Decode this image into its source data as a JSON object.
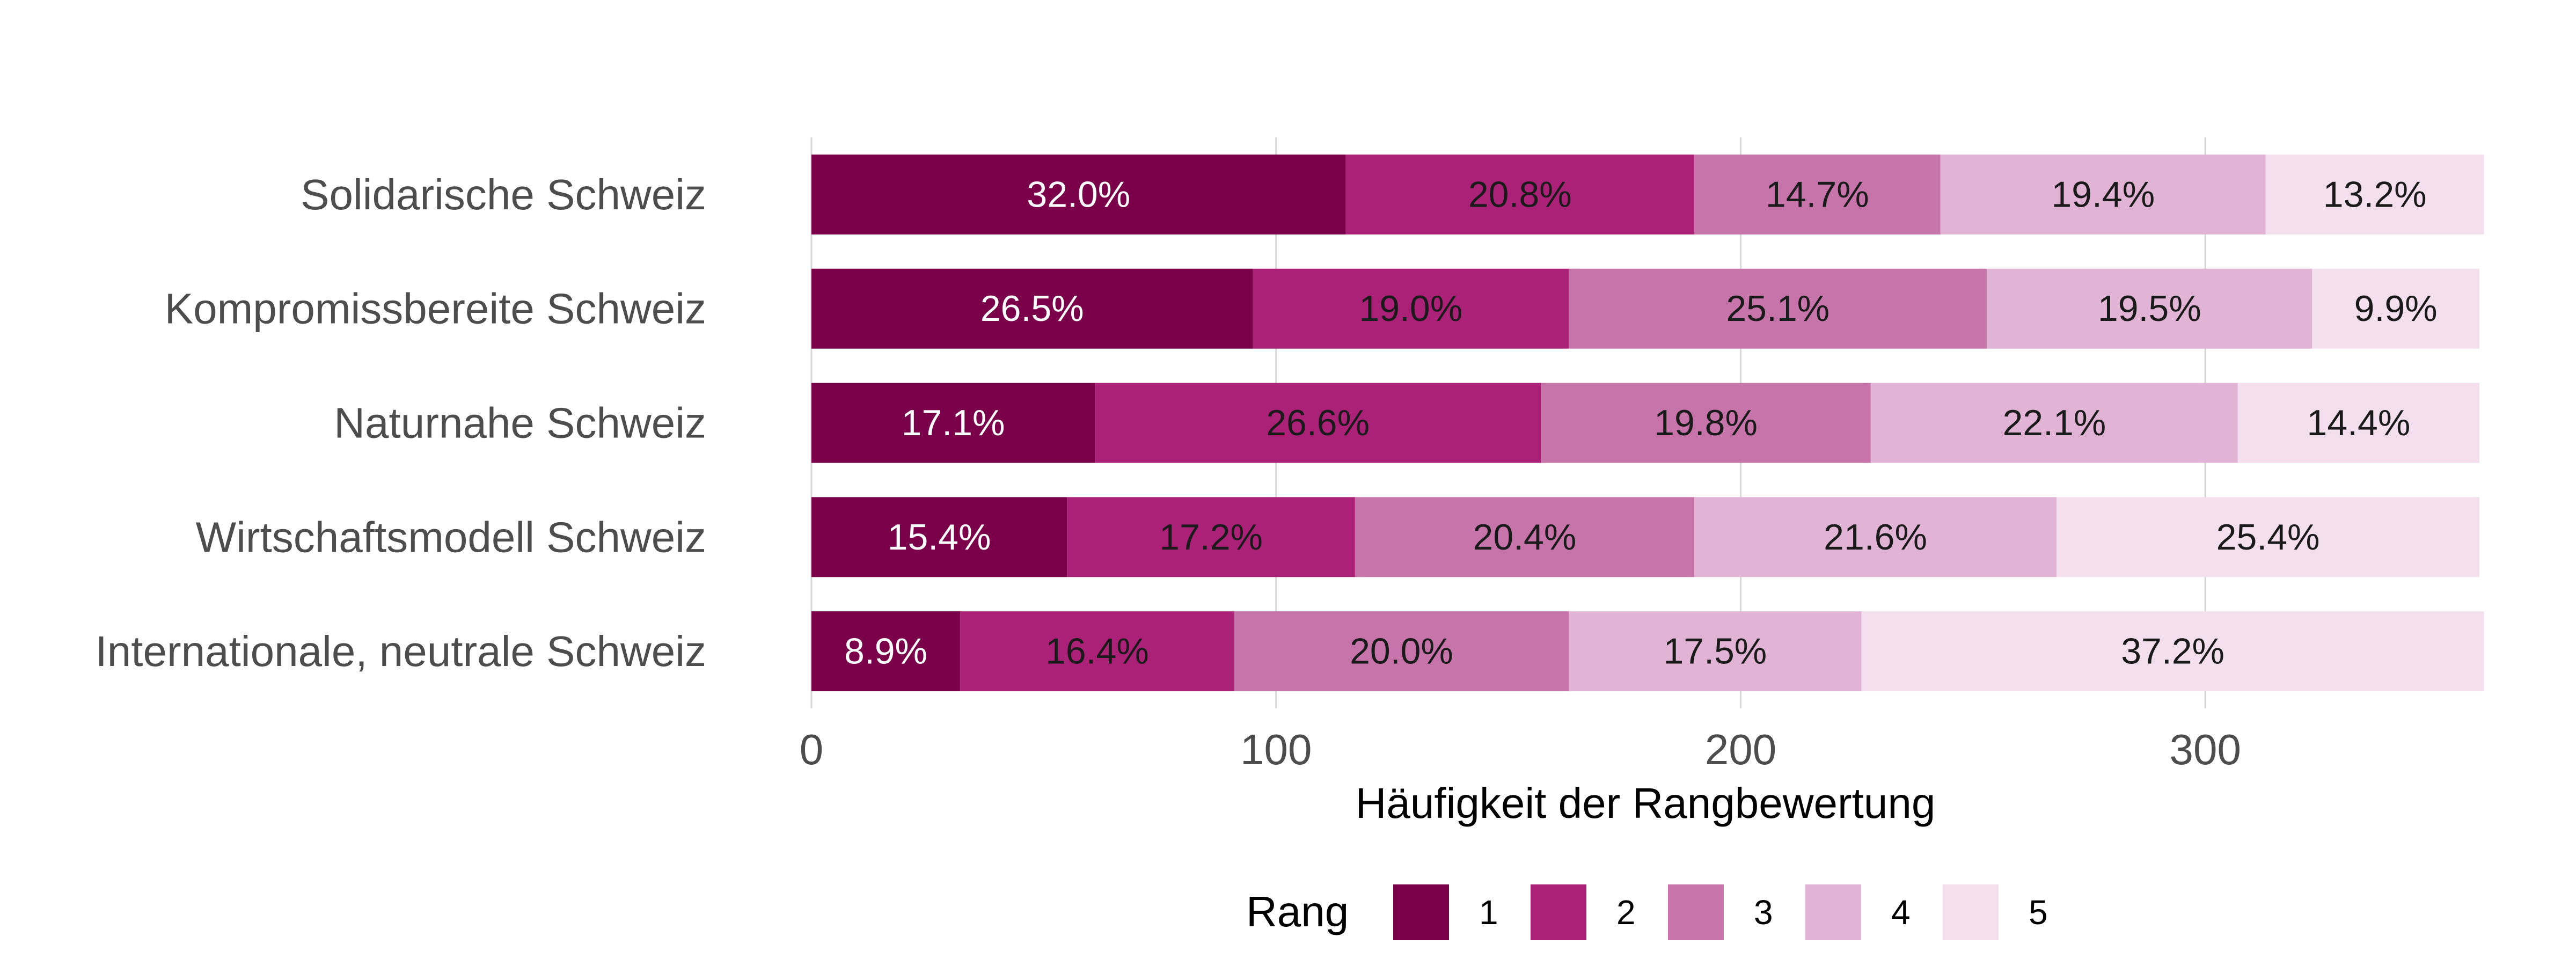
{
  "chart_data": {
    "type": "bar",
    "orientation": "horizontal",
    "stacked": true,
    "categories": [
      "Solidarische Schweiz",
      "Kompromissbereite Schweiz",
      "Naturnahe Schweiz",
      "Wirtschaftsmodell Schweiz",
      "Internationale, neutrale Schweiz"
    ],
    "total_per_category": 359,
    "series": [
      {
        "name": "1",
        "color": "#7a0049",
        "label_color": "#ffffff",
        "percent_labels": [
          "32.0%",
          "26.5%",
          "17.1%",
          "15.4%",
          "8.9%"
        ],
        "values": [
          115,
          95,
          61,
          55,
          32
        ]
      },
      {
        "name": "2",
        "color": "#ac2178",
        "label_color": "#1a1a1a",
        "percent_labels": [
          "20.8%",
          "19.0%",
          "26.6%",
          "17.2%",
          "16.4%"
        ],
        "values": [
          75,
          68,
          96,
          62,
          59
        ]
      },
      {
        "name": "3",
        "color": "#c674aa",
        "label_color": "#1a1a1a",
        "percent_labels": [
          "14.7%",
          "25.1%",
          "19.8%",
          "20.4%",
          "20.0%"
        ],
        "values": [
          53,
          90,
          71,
          73,
          72
        ]
      },
      {
        "name": "4",
        "color": "#e1b4d6",
        "label_color": "#1a1a1a",
        "percent_labels": [
          "19.4%",
          "19.5%",
          "22.1%",
          "21.6%",
          "17.5%"
        ],
        "values": [
          70,
          70,
          79,
          78,
          63
        ]
      },
      {
        "name": "5",
        "color": "#f3dfee",
        "label_color": "#1a1a1a",
        "percent_labels": [
          "13.2%",
          "9.9%",
          "14.4%",
          "25.4%",
          "37.2%"
        ],
        "values": [
          47,
          36,
          52,
          91,
          134
        ]
      }
    ],
    "x_ticks": [
      0,
      100,
      200,
      300
    ],
    "xlim": [
      0,
      359
    ],
    "xlabel": "Häufigkeit der Rangbewertung",
    "ylabel": "",
    "grid": "vertical major",
    "legend": {
      "title": "Rang",
      "placement": "bottom"
    }
  }
}
